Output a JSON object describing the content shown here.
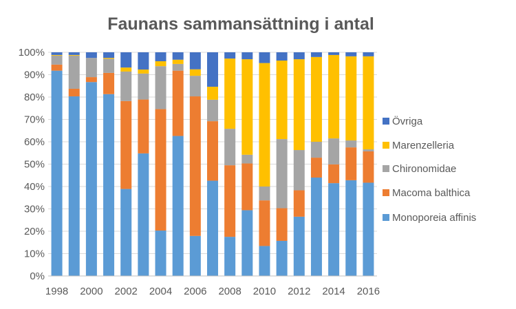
{
  "chart_data": {
    "type": "bar",
    "stacked": "percent",
    "title": "Faunans sammansättning i antal",
    "xlabel": "",
    "ylabel": "",
    "ylim": [
      0,
      100
    ],
    "yticks": [
      "0%",
      "10%",
      "20%",
      "30%",
      "40%",
      "50%",
      "60%",
      "70%",
      "80%",
      "90%",
      "100%"
    ],
    "categories": [
      "1998",
      "1999",
      "2000",
      "2001",
      "2002",
      "2003",
      "2004",
      "2005",
      "2006",
      "2007",
      "2008",
      "2009",
      "2010",
      "2011",
      "2012",
      "2013",
      "2014",
      "2015",
      "2016"
    ],
    "xtick_labels": [
      "1998",
      "2000",
      "2002",
      "2004",
      "2006",
      "2008",
      "2010",
      "2012",
      "2014",
      "2016"
    ],
    "grid": true,
    "legend_position": "right",
    "series": [
      {
        "name": "Monoporeia affinis",
        "color": "#5B9BD5",
        "values": [
          91.8,
          80.3,
          86.7,
          81.3,
          38.9,
          54.8,
          20.3,
          62.6,
          17.9,
          42.6,
          17.5,
          29.4,
          13.4,
          15.7,
          26.5,
          44.0,
          41.5,
          42.8,
          41.7
        ]
      },
      {
        "name": "Macoma balthica",
        "color": "#ED7D31",
        "values": [
          2.7,
          3.4,
          2.2,
          9.5,
          39.3,
          24.1,
          54.3,
          29.2,
          62.4,
          26.6,
          32.0,
          20.9,
          20.4,
          14.6,
          11.8,
          8.9,
          8.4,
          14.7,
          14.0
        ]
      },
      {
        "name": "Chironomidae",
        "color": "#A5A5A5",
        "values": [
          4.0,
          14.8,
          8.6,
          6.3,
          13.2,
          11.6,
          19.2,
          3.0,
          9.2,
          9.6,
          16.3,
          3.9,
          6.2,
          30.9,
          18.0,
          7.1,
          11.6,
          3.1,
          0.9
        ]
      },
      {
        "name": "Marenzelleria",
        "color": "#FFC000",
        "values": [
          0.3,
          0.3,
          0.0,
          0.4,
          1.8,
          1.8,
          2.2,
          1.9,
          2.9,
          5.8,
          31.4,
          42.7,
          55.2,
          35.1,
          40.6,
          37.9,
          37.3,
          37.6,
          41.6
        ]
      },
      {
        "name": "Övriga",
        "color": "#4472C4",
        "values": [
          1.2,
          1.2,
          2.5,
          2.5,
          6.8,
          7.7,
          4.0,
          3.3,
          7.6,
          15.4,
          2.8,
          3.1,
          4.8,
          3.7,
          3.1,
          2.1,
          1.2,
          1.8,
          1.8
        ]
      }
    ]
  }
}
